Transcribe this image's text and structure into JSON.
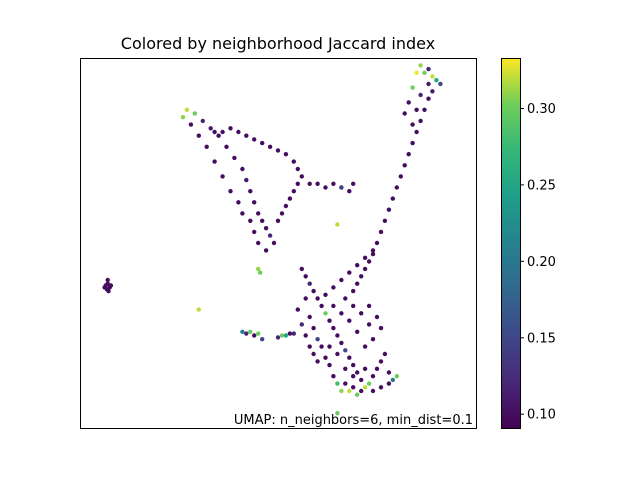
{
  "chart_data": {
    "type": "scatter",
    "title": "Colored by neighborhood Jaccard index",
    "xlabel": "",
    "ylabel": "",
    "axes_ticks_visible": false,
    "annotation": "UMAP: n_neighbors=6, min_dist=0.1",
    "colormap": "viridis",
    "colorbar": {
      "range": [
        0.091,
        0.333
      ],
      "ticks": [
        0.1,
        0.15,
        0.2,
        0.25,
        0.3
      ],
      "tick_labels": [
        "0.10",
        "0.15",
        "0.20",
        "0.25",
        "0.30"
      ]
    },
    "clusters": [
      {
        "id": "top-left-arm",
        "points": [
          [
            0.26,
            0.84
          ],
          [
            0.27,
            0.86
          ],
          [
            0.29,
            0.85
          ],
          [
            0.31,
            0.83
          ],
          [
            0.33,
            0.81
          ],
          [
            0.35,
            0.79
          ],
          [
            0.37,
            0.76
          ],
          [
            0.39,
            0.73
          ],
          [
            0.41,
            0.7
          ],
          [
            0.42,
            0.67
          ],
          [
            0.43,
            0.64
          ],
          [
            0.44,
            0.61
          ],
          [
            0.45,
            0.58
          ],
          [
            0.46,
            0.56
          ],
          [
            0.47,
            0.54
          ],
          [
            0.48,
            0.52
          ],
          [
            0.49,
            0.5
          ],
          [
            0.47,
            0.48
          ],
          [
            0.45,
            0.5
          ],
          [
            0.44,
            0.53
          ],
          [
            0.43,
            0.56
          ],
          [
            0.41,
            0.58
          ],
          [
            0.4,
            0.61
          ],
          [
            0.38,
            0.64
          ],
          [
            0.36,
            0.68
          ],
          [
            0.34,
            0.72
          ],
          [
            0.32,
            0.76
          ],
          [
            0.3,
            0.79
          ],
          [
            0.28,
            0.82
          ],
          [
            0.34,
            0.8
          ],
          [
            0.36,
            0.8
          ],
          [
            0.38,
            0.81
          ],
          [
            0.4,
            0.8
          ],
          [
            0.42,
            0.79
          ],
          [
            0.44,
            0.78
          ],
          [
            0.46,
            0.77
          ],
          [
            0.48,
            0.76
          ],
          [
            0.5,
            0.75
          ],
          [
            0.52,
            0.74
          ],
          [
            0.54,
            0.72
          ],
          [
            0.55,
            0.7
          ],
          [
            0.56,
            0.68
          ],
          [
            0.55,
            0.66
          ],
          [
            0.54,
            0.64
          ],
          [
            0.53,
            0.62
          ],
          [
            0.52,
            0.6
          ],
          [
            0.51,
            0.58
          ],
          [
            0.5,
            0.56
          ],
          [
            0.58,
            0.66
          ],
          [
            0.6,
            0.66
          ],
          [
            0.62,
            0.65
          ],
          [
            0.64,
            0.66
          ],
          [
            0.66,
            0.65
          ],
          [
            0.68,
            0.64
          ],
          [
            0.69,
            0.66
          ]
        ],
        "values": [
          0.31,
          0.32,
          0.3,
          0.12,
          0.11,
          0.1,
          0.1,
          0.1,
          0.1,
          0.11,
          0.1,
          0.1,
          0.1,
          0.1,
          0.1,
          0.12,
          0.1,
          0.1,
          0.1,
          0.1,
          0.1,
          0.1,
          0.1,
          0.1,
          0.1,
          0.1,
          0.1,
          0.1,
          0.1,
          0.1,
          0.1,
          0.1,
          0.1,
          0.1,
          0.1,
          0.1,
          0.1,
          0.1,
          0.1,
          0.1,
          0.1,
          0.1,
          0.1,
          0.1,
          0.1,
          0.1,
          0.1,
          0.1,
          0.1,
          0.1,
          0.1,
          0.1,
          0.1,
          0.1,
          0.1
        ]
      },
      {
        "id": "right-arm",
        "points": [
          [
            0.85,
            0.96
          ],
          [
            0.86,
            0.98
          ],
          [
            0.87,
            0.96
          ],
          [
            0.88,
            0.97
          ],
          [
            0.89,
            0.95
          ],
          [
            0.9,
            0.94
          ],
          [
            0.91,
            0.93
          ],
          [
            0.89,
            0.91
          ],
          [
            0.88,
            0.89
          ],
          [
            0.87,
            0.86
          ],
          [
            0.86,
            0.83
          ],
          [
            0.85,
            0.8
          ],
          [
            0.84,
            0.77
          ],
          [
            0.83,
            0.74
          ],
          [
            0.82,
            0.71
          ],
          [
            0.81,
            0.68
          ],
          [
            0.8,
            0.65
          ],
          [
            0.79,
            0.62
          ],
          [
            0.78,
            0.59
          ],
          [
            0.77,
            0.56
          ],
          [
            0.76,
            0.53
          ],
          [
            0.75,
            0.5
          ],
          [
            0.74,
            0.47
          ],
          [
            0.73,
            0.45
          ],
          [
            0.72,
            0.43
          ],
          [
            0.71,
            0.41
          ],
          [
            0.7,
            0.39
          ],
          [
            0.69,
            0.37
          ],
          [
            0.84,
            0.92
          ],
          [
            0.86,
            0.9
          ],
          [
            0.88,
            0.93
          ],
          [
            0.83,
            0.88
          ],
          [
            0.82,
            0.85
          ],
          [
            0.84,
            0.82
          ],
          [
            0.85,
            0.86
          ]
        ],
        "values": [
          0.33,
          0.31,
          0.3,
          0.12,
          0.32,
          0.25,
          0.15,
          0.11,
          0.1,
          0.1,
          0.1,
          0.1,
          0.1,
          0.1,
          0.1,
          0.1,
          0.1,
          0.1,
          0.1,
          0.1,
          0.1,
          0.1,
          0.1,
          0.1,
          0.1,
          0.1,
          0.1,
          0.1,
          0.3,
          0.12,
          0.11,
          0.1,
          0.1,
          0.1,
          0.1
        ]
      },
      {
        "id": "bottom-mass",
        "points": [
          [
            0.56,
            0.43
          ],
          [
            0.57,
            0.41
          ],
          [
            0.58,
            0.39
          ],
          [
            0.59,
            0.37
          ],
          [
            0.6,
            0.35
          ],
          [
            0.61,
            0.33
          ],
          [
            0.62,
            0.31
          ],
          [
            0.63,
            0.29
          ],
          [
            0.64,
            0.27
          ],
          [
            0.65,
            0.25
          ],
          [
            0.66,
            0.23
          ],
          [
            0.67,
            0.21
          ],
          [
            0.68,
            0.19
          ],
          [
            0.69,
            0.17
          ],
          [
            0.7,
            0.15
          ],
          [
            0.71,
            0.13
          ],
          [
            0.72,
            0.11
          ],
          [
            0.73,
            0.12
          ],
          [
            0.74,
            0.14
          ],
          [
            0.75,
            0.16
          ],
          [
            0.76,
            0.18
          ],
          [
            0.77,
            0.2
          ],
          [
            0.78,
            0.15
          ],
          [
            0.79,
            0.13
          ],
          [
            0.8,
            0.14
          ],
          [
            0.58,
            0.3
          ],
          [
            0.59,
            0.27
          ],
          [
            0.6,
            0.24
          ],
          [
            0.61,
            0.22
          ],
          [
            0.62,
            0.19
          ],
          [
            0.63,
            0.17
          ],
          [
            0.64,
            0.14
          ],
          [
            0.65,
            0.12
          ],
          [
            0.66,
            0.1
          ],
          [
            0.67,
            0.12
          ],
          [
            0.68,
            0.1
          ],
          [
            0.69,
            0.11
          ],
          [
            0.7,
            0.09
          ],
          [
            0.71,
            0.1
          ],
          [
            0.57,
            0.35
          ],
          [
            0.55,
            0.32
          ],
          [
            0.56,
            0.28
          ],
          [
            0.57,
            0.25
          ],
          [
            0.58,
            0.22
          ],
          [
            0.59,
            0.2
          ],
          [
            0.6,
            0.18
          ],
          [
            0.62,
            0.36
          ],
          [
            0.64,
            0.38
          ],
          [
            0.66,
            0.4
          ],
          [
            0.68,
            0.42
          ],
          [
            0.7,
            0.44
          ],
          [
            0.72,
            0.46
          ],
          [
            0.74,
            0.48
          ],
          [
            0.73,
            0.33
          ],
          [
            0.75,
            0.3
          ],
          [
            0.76,
            0.27
          ],
          [
            0.74,
            0.24
          ],
          [
            0.72,
            0.22
          ],
          [
            0.7,
            0.26
          ],
          [
            0.68,
            0.29
          ],
          [
            0.66,
            0.31
          ],
          [
            0.64,
            0.33
          ],
          [
            0.67,
            0.35
          ],
          [
            0.69,
            0.33
          ],
          [
            0.71,
            0.31
          ],
          [
            0.73,
            0.28
          ],
          [
            0.63,
            0.22
          ],
          [
            0.65,
            0.2
          ],
          [
            0.67,
            0.16
          ],
          [
            0.69,
            0.14
          ],
          [
            0.72,
            0.16
          ],
          [
            0.74,
            0.1
          ],
          [
            0.76,
            0.11
          ],
          [
            0.78,
            0.12
          ]
        ],
        "values": [
          0.1,
          0.1,
          0.12,
          0.1,
          0.1,
          0.1,
          0.3,
          0.1,
          0.1,
          0.1,
          0.1,
          0.15,
          0.1,
          0.1,
          0.1,
          0.1,
          0.32,
          0.3,
          0.1,
          0.1,
          0.1,
          0.1,
          0.1,
          0.2,
          0.3,
          0.1,
          0.1,
          0.15,
          0.1,
          0.1,
          0.1,
          0.1,
          0.28,
          0.31,
          0.1,
          0.32,
          0.1,
          0.3,
          0.1,
          0.1,
          0.1,
          0.12,
          0.1,
          0.1,
          0.1,
          0.1,
          0.1,
          0.1,
          0.1,
          0.1,
          0.1,
          0.1,
          0.1,
          0.1,
          0.1,
          0.1,
          0.1,
          0.1,
          0.1,
          0.1,
          0.1,
          0.1,
          0.1,
          0.1,
          0.1,
          0.1,
          0.1,
          0.1,
          0.1,
          0.1,
          0.1,
          0.1,
          0.1,
          0.1
        ]
      },
      {
        "id": "small-left",
        "points": [
          [
            0.065,
            0.385
          ],
          [
            0.07,
            0.39
          ],
          [
            0.075,
            0.38
          ],
          [
            0.068,
            0.375
          ],
          [
            0.072,
            0.37
          ],
          [
            0.078,
            0.385
          ],
          [
            0.062,
            0.38
          ],
          [
            0.07,
            0.4
          ]
        ],
        "values": [
          0.1,
          0.1,
          0.1,
          0.1,
          0.1,
          0.1,
          0.1,
          0.1
        ]
      },
      {
        "id": "small-middle-band",
        "points": [
          [
            0.41,
            0.26
          ],
          [
            0.42,
            0.255
          ],
          [
            0.43,
            0.26
          ],
          [
            0.44,
            0.25
          ],
          [
            0.45,
            0.255
          ],
          [
            0.46,
            0.24
          ],
          [
            0.5,
            0.245
          ],
          [
            0.51,
            0.25
          ],
          [
            0.52,
            0.25
          ],
          [
            0.53,
            0.255
          ],
          [
            0.54,
            0.255
          ]
        ],
        "values": [
          0.2,
          0.12,
          0.3,
          0.1,
          0.3,
          0.15,
          0.12,
          0.3,
          0.25,
          0.1,
          0.12
        ]
      },
      {
        "id": "isolated",
        "points": [
          [
            0.45,
            0.43
          ],
          [
            0.455,
            0.42
          ],
          [
            0.3,
            0.32
          ],
          [
            0.66,
            0.65
          ],
          [
            0.65,
            0.55
          ],
          [
            0.65,
            0.04
          ]
        ],
        "values": [
          0.31,
          0.3,
          0.32,
          0.15,
          0.32,
          0.3
        ]
      }
    ]
  }
}
